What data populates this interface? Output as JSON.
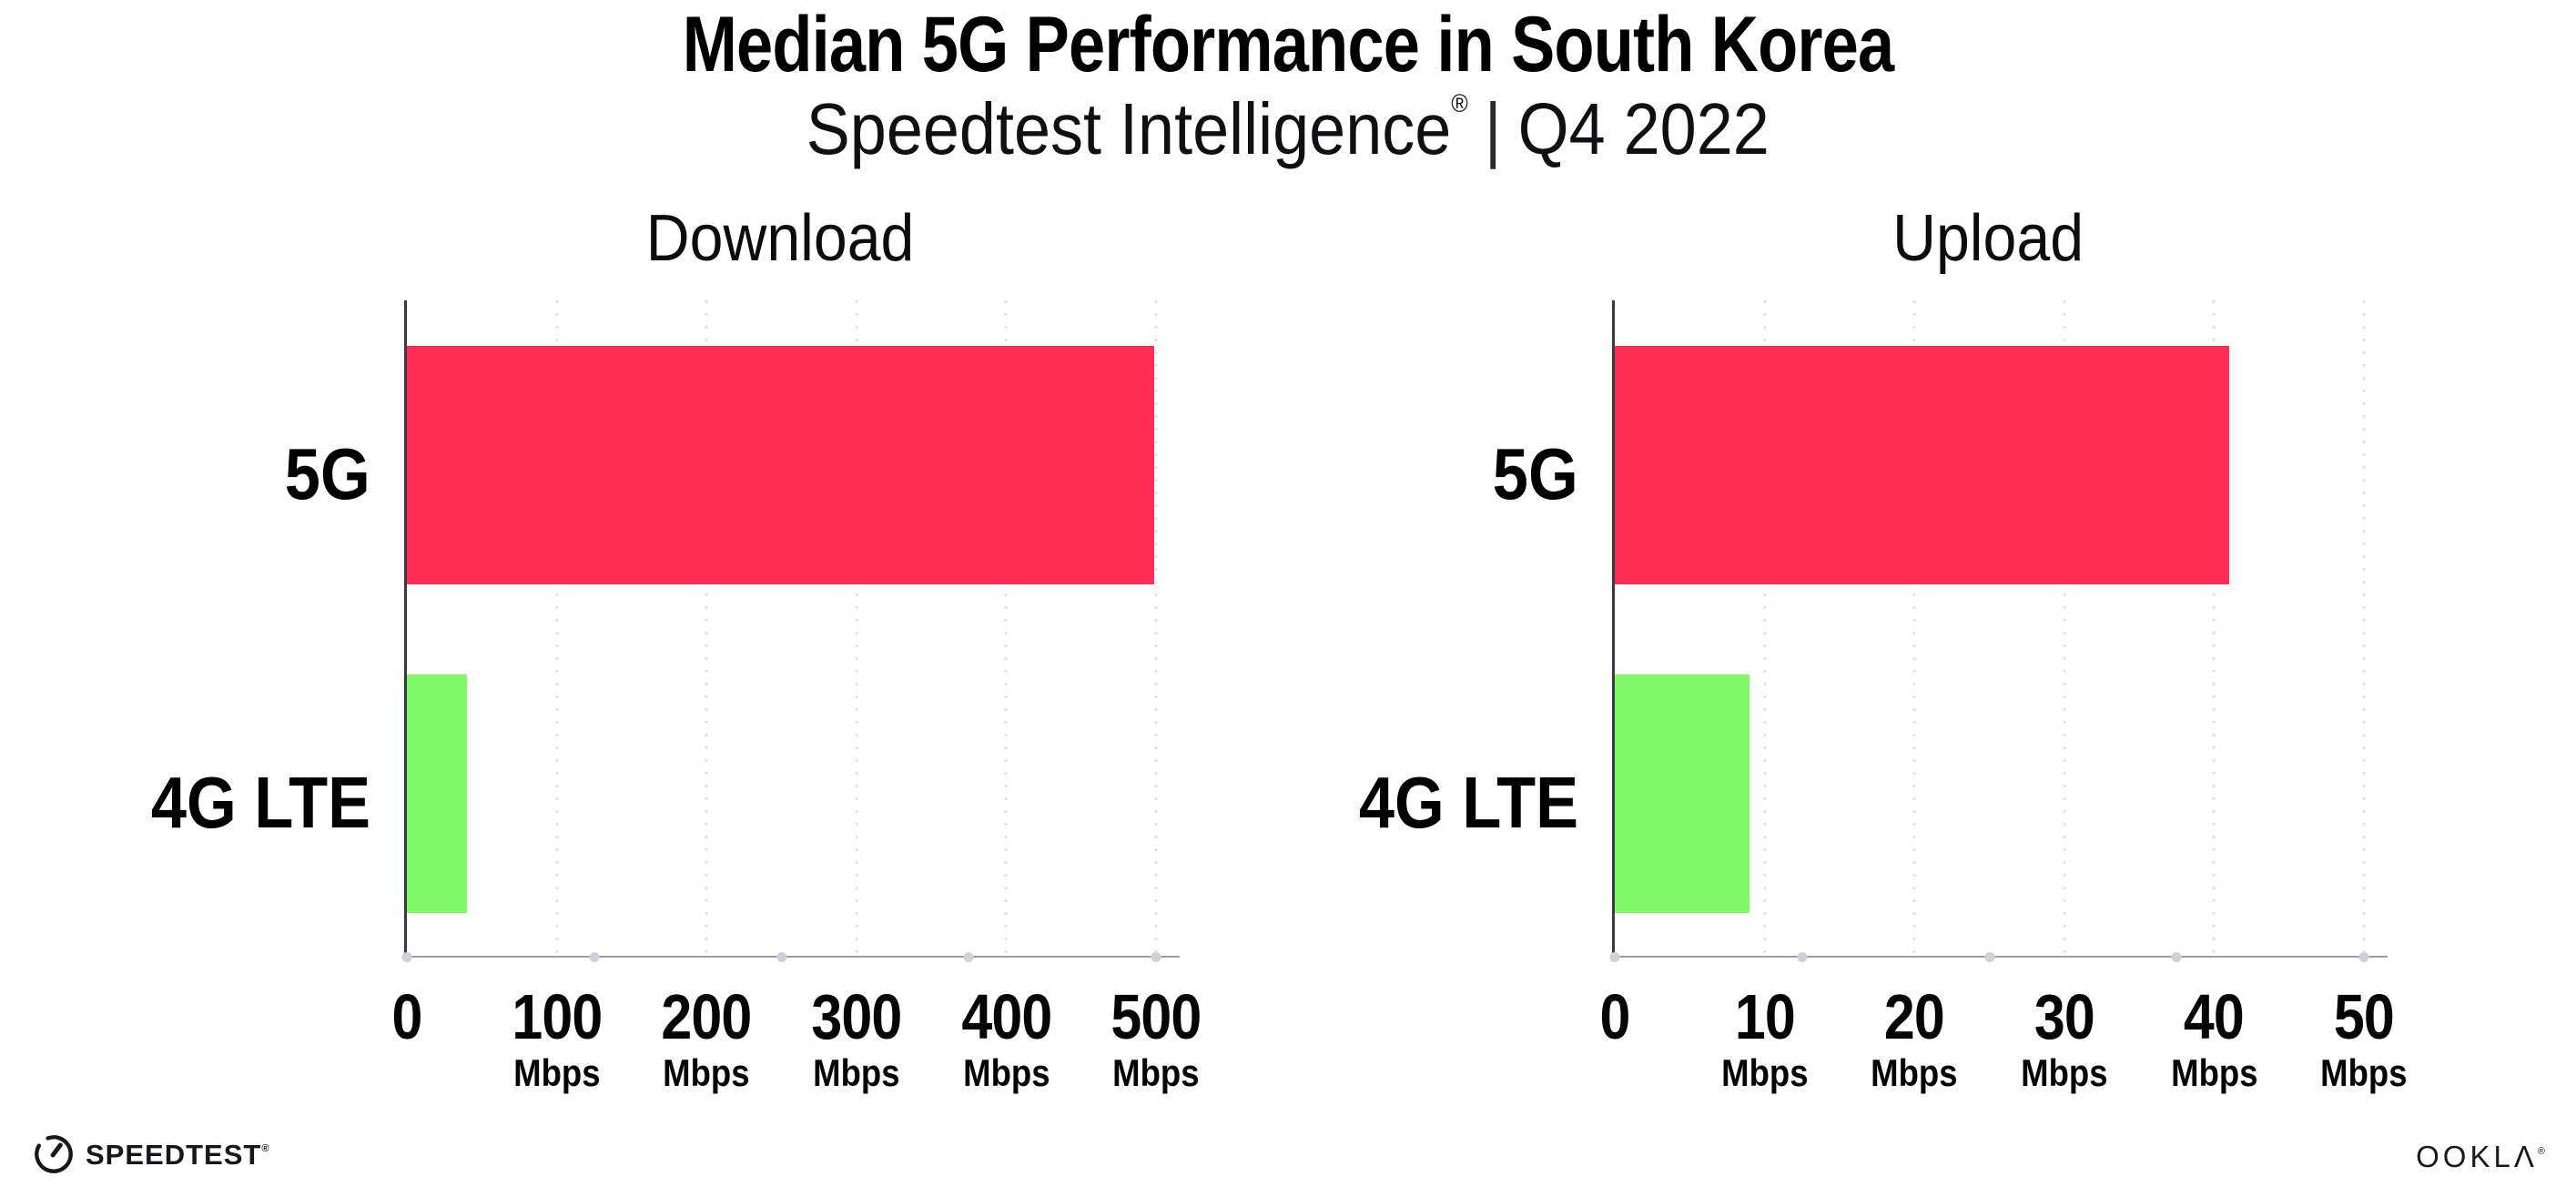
{
  "header": {
    "title": "Median 5G Performance in South Korea",
    "subtitle_brand": "Speedtest Intelligence",
    "subtitle_reg": "®",
    "subtitle_sep": "|",
    "subtitle_period": "Q4 2022"
  },
  "colors": {
    "bar_5g": "#FD2D55",
    "bar_4g_lte": "#80FA66",
    "gridline": "#E2E2EC",
    "y_axis_line": "#3A3A44",
    "x_axis_line": "#9C9CA4",
    "axis_marker_dot": "#D0D0DA",
    "text": "#000000",
    "background": "#FFFFFF"
  },
  "chart_data": [
    {
      "type": "bar",
      "orientation": "horizontal",
      "title": "Download",
      "categories": [
        "5G",
        "4G LTE"
      ],
      "values": [
        499,
        40
      ],
      "unit": "Mbps",
      "xlim": [
        0,
        500
      ],
      "xticks": [
        0,
        100,
        200,
        300,
        400,
        500
      ],
      "bar_colors": [
        "#FD2D55",
        "#80FA66"
      ],
      "grid": "dotted-vertical-light",
      "legend": "none"
    },
    {
      "type": "bar",
      "orientation": "horizontal",
      "title": "Upload",
      "categories": [
        "5G",
        "4G LTE"
      ],
      "values": [
        41,
        9
      ],
      "unit": "Mbps",
      "xlim": [
        0,
        50
      ],
      "xticks": [
        0,
        10,
        20,
        30,
        40,
        50
      ],
      "bar_colors": [
        "#FD2D55",
        "#80FA66"
      ],
      "grid": "dotted-vertical-light",
      "legend": "none"
    }
  ],
  "footer": {
    "speedtest_logo_text": "SPEEDTEST",
    "speedtest_reg": "®",
    "ookla_logo_text": "OOKLΛ",
    "ookla_reg": "®"
  }
}
